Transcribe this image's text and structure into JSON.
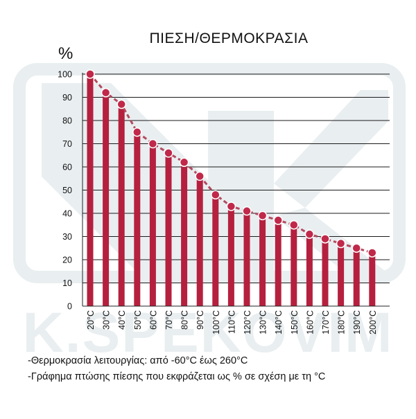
{
  "chart_data": {
    "type": "bar",
    "title": "ΠΙΕΣΗ/ΘΕΡΜΟΚΡΑΣΙΑ",
    "ylabel": "%",
    "xlabel": "",
    "ylim": [
      0,
      100
    ],
    "yticks": [
      0,
      10,
      20,
      30,
      40,
      50,
      60,
      70,
      80,
      90,
      100
    ],
    "grid": true,
    "overlay_line": true,
    "categories": [
      "20°C",
      "30°C",
      "40°C",
      "50°C",
      "60°C",
      "70°C",
      "80°C",
      "90°C",
      "100°C",
      "110°C",
      "120°C",
      "130°C",
      "140°C",
      "150°C",
      "160°C",
      "170°C",
      "180°C",
      "190°C",
      "200°C"
    ],
    "values": [
      100,
      92,
      87,
      75,
      70,
      66,
      62,
      56,
      48,
      43,
      41,
      39,
      37,
      35,
      31,
      29,
      27,
      25,
      23
    ],
    "colors": {
      "bar": "#b5203f",
      "marker": "#c0294a",
      "line": "#b34a5e",
      "axis": "#222222",
      "watermark": "#e9eef0"
    }
  },
  "notes": [
    "-Θερμοκρασία λειτουργίας: από -60°C έως 260°C",
    "-Γράφημα πτώσης πίεσης που εκφράζεται ως % σε σχέση με τη °C"
  ],
  "watermark": {
    "text": "K.SPEKOVIM",
    "icon": "k-logo-watermark-icon"
  }
}
